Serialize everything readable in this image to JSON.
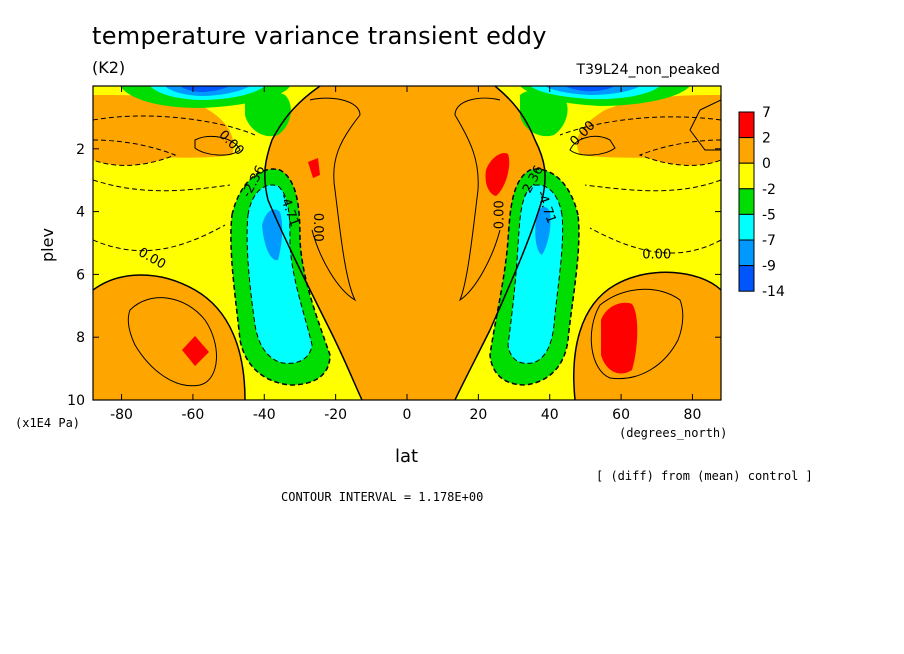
{
  "header": {
    "title": "temperature variance transient eddy",
    "units": "(K2)",
    "run_name": "T39L24_non_peaked"
  },
  "footer": {
    "diff_note": "[ (diff) from (mean) control ]",
    "contour_interval": "CONTOUR INTERVAL = 1.178E+00"
  },
  "chart_data": {
    "type": "contour",
    "xlabel": "lat",
    "ylabel": "plev",
    "x_unit": "(degrees_north)",
    "y_unit": "(x1E4 Pa)",
    "xlim": [
      -88,
      88
    ],
    "ylim": [
      10,
      0
    ],
    "xticks": [
      -80,
      -60,
      -40,
      -20,
      0,
      20,
      40,
      60,
      80
    ],
    "yticks": [
      2,
      4,
      6,
      8,
      10
    ],
    "colorbar": {
      "levels": [
        "7",
        "2",
        "0",
        "-2",
        "-5",
        "-7",
        "-9",
        "-14"
      ],
      "colors": [
        "#ff0000",
        "#ffa500",
        "#ffff00",
        "#00dd00",
        "#00ffff",
        "#0099ff",
        "#0055ff"
      ]
    },
    "contour_labels": [
      {
        "text": "0.00",
        "x": -50,
        "y": 1.9,
        "angle": 45
      },
      {
        "text": "0.00",
        "x": 50,
        "y": 1.6,
        "angle": -45
      },
      {
        "text": "0.00",
        "x": -72,
        "y": 5.6,
        "angle": 30
      },
      {
        "text": "0.00",
        "x": 70,
        "y": 5.5,
        "angle": 0
      },
      {
        "text": "0.00",
        "x": -26,
        "y": 4.5,
        "angle": 90
      },
      {
        "text": "0.00",
        "x": 27,
        "y": 4.1,
        "angle": -90
      },
      {
        "text": "-2.36",
        "x": -42,
        "y": 3.1,
        "angle": -62
      },
      {
        "text": "-2.36",
        "x": 36,
        "y": 3.1,
        "angle": -62
      },
      {
        "text": "-4.71",
        "x": -34,
        "y": 4.0,
        "angle": 70
      },
      {
        "text": "-4.71",
        "x": 38,
        "y": 3.9,
        "angle": 70
      }
    ],
    "regions": [
      {
        "level": "0..2",
        "note": "background positive variance difference"
      },
      {
        "level": "-2..0",
        "note": "negative bands around jets and lower midlatitudes"
      },
      {
        "level": "-14..-2",
        "note": "tropopause-level minima near +/-35 deg"
      },
      {
        "level": "2..7",
        "note": "maxima near -60 and +60 deg at 8-9 plev, and near +/-25 deg at 2.5-3 plev"
      }
    ]
  }
}
